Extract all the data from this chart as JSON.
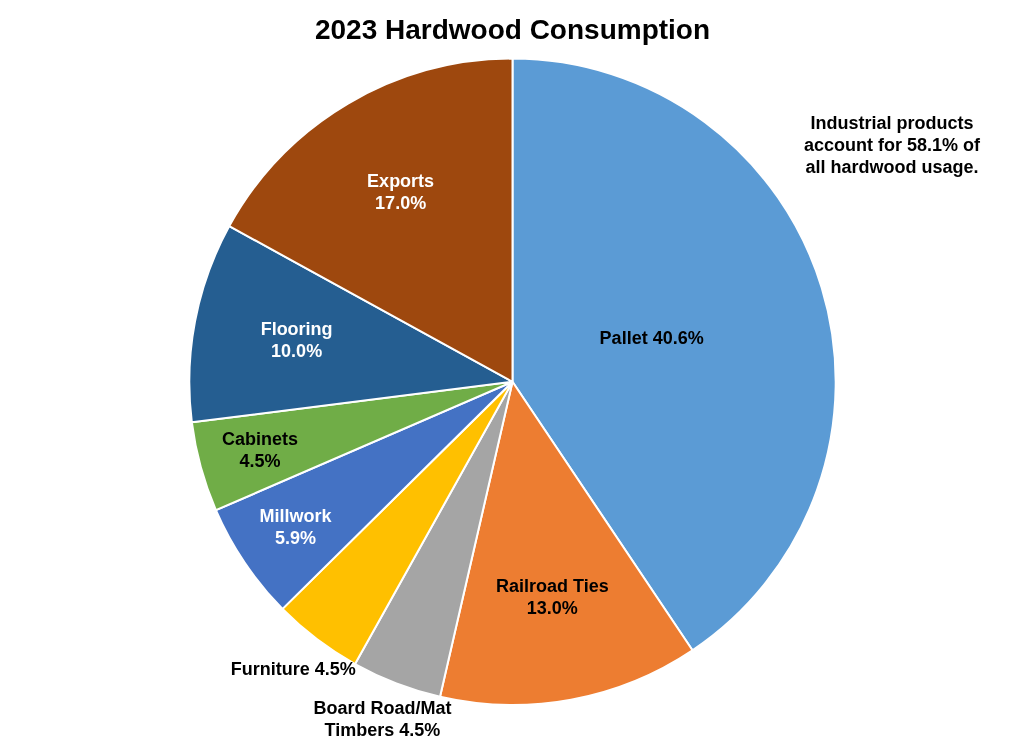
{
  "chart_data": {
    "type": "pie",
    "title": "2023 Hardwood Consumption",
    "categories": [
      "Pallet",
      "Railroad Ties",
      "Board Road/Mat Timbers",
      "Furniture",
      "Millwork",
      "Cabinets",
      "Flooring",
      "Exports"
    ],
    "values": [
      40.6,
      13.0,
      4.5,
      4.5,
      5.9,
      4.5,
      10.0,
      17.0
    ],
    "value_labels": [
      "40.6%",
      "13.0%",
      "4.5%",
      "4.5%",
      "5.9%",
      "4.5%",
      "10.0%",
      "17.0%"
    ],
    "colors": [
      "#5b9bd5",
      "#ed7d31",
      "#a5a5a5",
      "#ffc000",
      "#4472c4",
      "#70ad47",
      "#255e91",
      "#9e480e"
    ],
    "annotations": [
      "Industrial products account for 58.1% of all hardwood usage."
    ],
    "legend": false
  }
}
